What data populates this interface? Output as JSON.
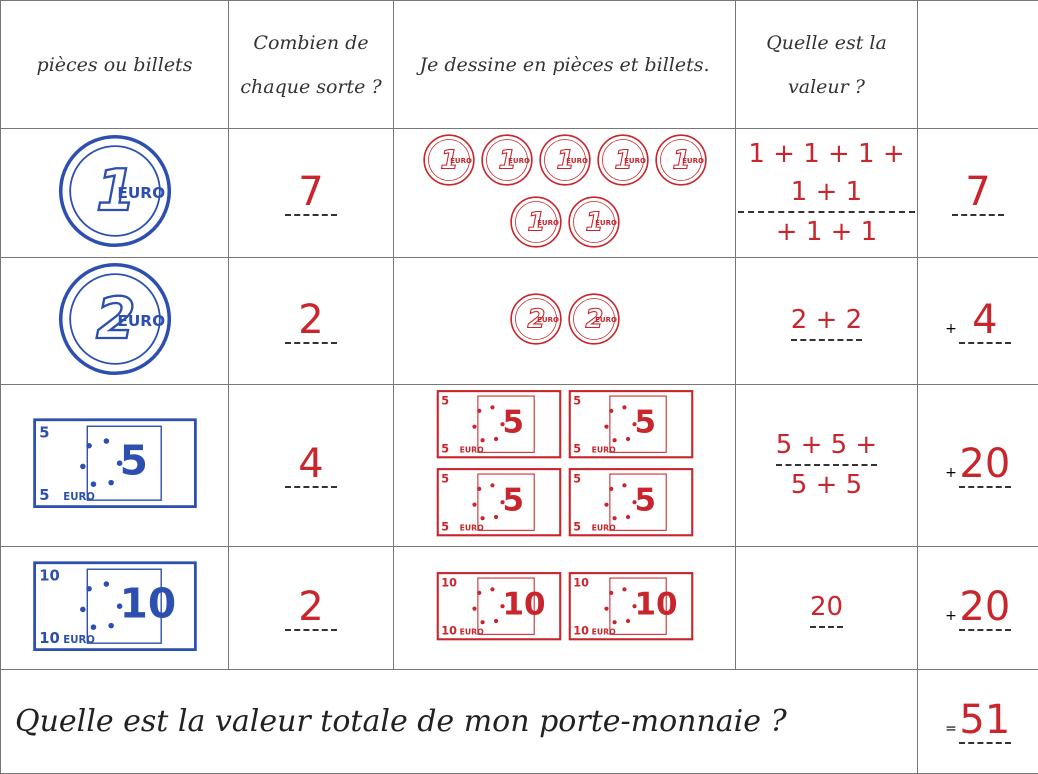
{
  "header": {
    "columns": [
      "pièces ou billets",
      "Combien de chaque sorte ?",
      "Je dessine en pièces et billets.",
      "Quelle est la valeur ?"
    ]
  },
  "currency": "EURO",
  "rows": [
    {
      "denomination": "1",
      "count": "7",
      "value_lines": [
        "1 + 1 + 1 + 1 + 1",
        "+ 1 + 1"
      ],
      "total": "7"
    },
    {
      "denomination": "2",
      "count": "2",
      "value_lines": [
        "2 + 2"
      ],
      "operator": "+",
      "total": "4"
    },
    {
      "denomination": "5",
      "count": "4",
      "value_lines": [
        "5 + 5 +",
        "5 + 5"
      ],
      "operator": "+",
      "total": "20"
    },
    {
      "denomination": "10",
      "count": "2",
      "value_lines": [
        "20"
      ],
      "operator": "+",
      "total": "20"
    }
  ],
  "footer": {
    "question": "Quelle est la valeur totale de mon porte-monnaie ?",
    "operator": "=",
    "total": "51"
  }
}
